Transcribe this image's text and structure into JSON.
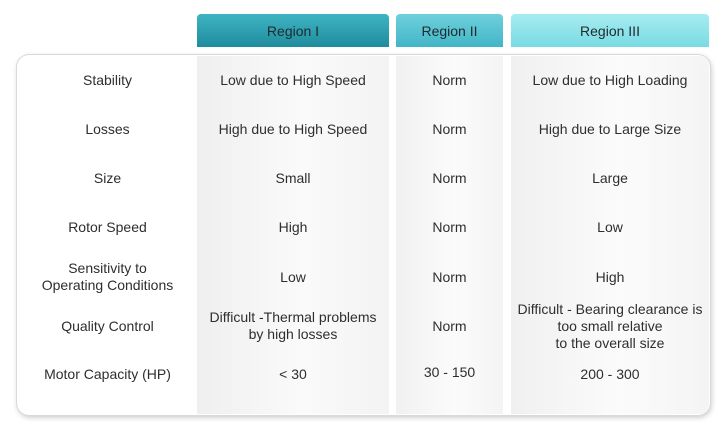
{
  "headers": [
    "Region I",
    "Region II",
    "Region III"
  ],
  "rows": [
    {
      "label": [
        "Stability"
      ],
      "r1": [
        "Low due to High Speed"
      ],
      "r2": [
        "Norm"
      ],
      "r3": [
        "Low due to High Loading"
      ]
    },
    {
      "label": [
        "Losses"
      ],
      "r1": [
        "High due to High Speed"
      ],
      "r2": [
        "Norm"
      ],
      "r3": [
        "High due to Large Size"
      ]
    },
    {
      "label": [
        "Size"
      ],
      "r1": [
        "Small"
      ],
      "r2": [
        "Norm"
      ],
      "r3": [
        "Large"
      ]
    },
    {
      "label": [
        "Rotor Speed"
      ],
      "r1": [
        "High"
      ],
      "r2": [
        "Norm"
      ],
      "r3": [
        "Low"
      ]
    },
    {
      "label": [
        "Sensitivity to",
        "Operating Conditions"
      ],
      "r1": [
        "Low"
      ],
      "r2": [
        "Norm"
      ],
      "r3": [
        "High"
      ]
    },
    {
      "label": [
        "Quality Control"
      ],
      "r1": [
        "Difficult -Thermal problems",
        "by high losses"
      ],
      "r2": [
        "Norm"
      ],
      "r3": [
        "Difficult - Bearing clearance is",
        "too small relative",
        "to the overall size"
      ]
    },
    {
      "label": [
        "Motor Capacity (HP)"
      ],
      "r1": [
        "< 30"
      ],
      "r2": [
        "30 - 150"
      ],
      "r3": [
        "200 - 300"
      ]
    }
  ],
  "colors": {
    "region1": "#2a9eae",
    "region2": "#55c3d1",
    "region3": "#8fe3e9"
  }
}
